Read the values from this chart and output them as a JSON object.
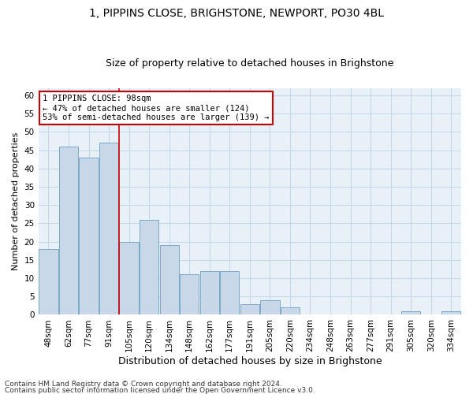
{
  "title1": "1, PIPPINS CLOSE, BRIGHSTONE, NEWPORT, PO30 4BL",
  "title2": "Size of property relative to detached houses in Brighstone",
  "xlabel": "Distribution of detached houses by size in Brighstone",
  "ylabel": "Number of detached properties",
  "categories": [
    "48sqm",
    "62sqm",
    "77sqm",
    "91sqm",
    "105sqm",
    "120sqm",
    "134sqm",
    "148sqm",
    "162sqm",
    "177sqm",
    "191sqm",
    "205sqm",
    "220sqm",
    "234sqm",
    "248sqm",
    "263sqm",
    "277sqm",
    "291sqm",
    "305sqm",
    "320sqm",
    "334sqm"
  ],
  "values": [
    18,
    46,
    43,
    47,
    20,
    26,
    19,
    11,
    12,
    12,
    3,
    4,
    2,
    0,
    0,
    0,
    0,
    0,
    1,
    0,
    1
  ],
  "bar_color": "#c8d8e8",
  "bar_edge_color": "#7aaac8",
  "reference_line_x": 3.5,
  "annotation_title": "1 PIPPINS CLOSE: 98sqm",
  "annotation_line1": "← 47% of detached houses are smaller (124)",
  "annotation_line2": "53% of semi-detached houses are larger (139) →",
  "annotation_box_color": "#ffffff",
  "annotation_border_color": "#cc0000",
  "ref_line_color": "#cc0000",
  "ylim": [
    0,
    62
  ],
  "yticks": [
    0,
    5,
    10,
    15,
    20,
    25,
    30,
    35,
    40,
    45,
    50,
    55,
    60
  ],
  "footer1": "Contains HM Land Registry data © Crown copyright and database right 2024.",
  "footer2": "Contains public sector information licensed under the Open Government Licence v3.0.",
  "plot_bg_color": "#e8f0f8",
  "grid_color": "#c8d8e8",
  "title1_fontsize": 10,
  "title2_fontsize": 9,
  "ylabel_fontsize": 8,
  "xlabel_fontsize": 9,
  "tick_fontsize": 7.5,
  "footer_fontsize": 6.5
}
